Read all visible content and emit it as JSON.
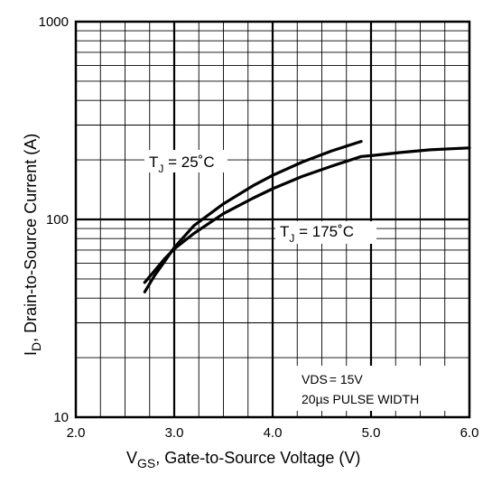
{
  "chart_data": {
    "type": "line",
    "x_scale": "linear",
    "y_scale": "log",
    "xlim": [
      2.0,
      6.0
    ],
    "ylim": [
      10,
      1000
    ],
    "grid": true,
    "x_ticks": [
      "2.0",
      "3.0",
      "4.0",
      "5.0",
      "6.0"
    ],
    "y_ticks": [
      "10",
      "100",
      "1000"
    ],
    "xlabel": {
      "main": "V",
      "sub": "GS",
      "rest": ", Gate-to-Source Voltage (V)"
    },
    "ylabel": {
      "main": "I",
      "sub": "D",
      "rest": ",  Drain-to-Source Current (A)"
    },
    "series": [
      {
        "label": {
          "main": "T",
          "sub": "J",
          "rest": " = 25˚C"
        },
        "x": [
          2.7,
          2.8,
          2.9,
          3.0,
          3.2,
          3.5,
          3.8,
          4.0,
          4.3,
          4.6,
          4.9
        ],
        "y": [
          43,
          52,
          61,
          72,
          93,
          120,
          148,
          167,
          195,
          222,
          248
        ]
      },
      {
        "label": {
          "main": "T",
          "sub": "J",
          "rest": " = 175˚C"
        },
        "x": [
          2.7,
          2.8,
          2.9,
          3.0,
          3.2,
          3.5,
          3.8,
          4.0,
          4.3,
          4.6,
          4.9,
          5.0,
          5.3,
          5.6,
          6.0
        ],
        "y": [
          48,
          55,
          63,
          71,
          85,
          107,
          128,
          143,
          165,
          186,
          208,
          210,
          218,
          225,
          230
        ]
      }
    ],
    "conditions": {
      "line1": {
        "main": "V",
        "sub": "DS",
        "rest": "= 15V"
      },
      "line2": "20µs PULSE WIDTH"
    }
  }
}
